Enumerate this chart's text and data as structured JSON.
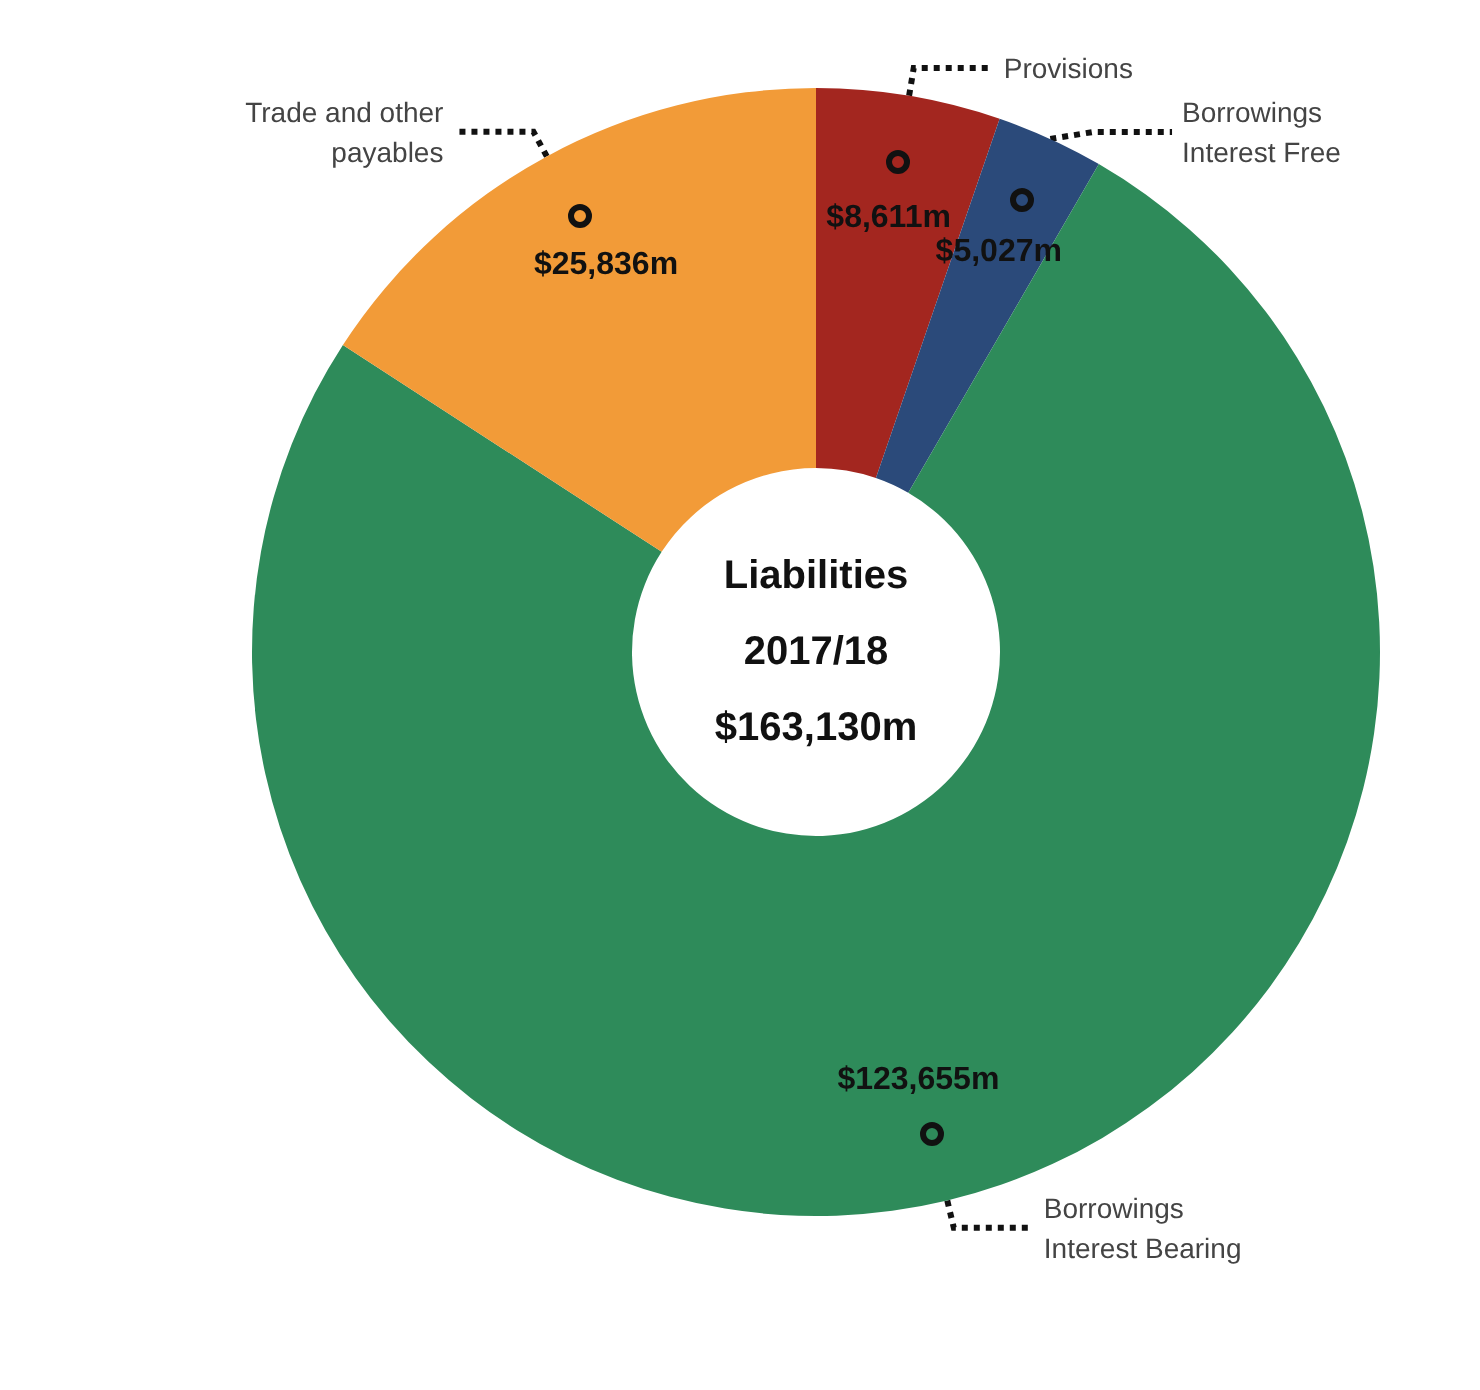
{
  "chart_data": {
    "type": "donut",
    "title": "Liabilities",
    "subtitle": "2017/18",
    "annotations": [
      "$163,130m"
    ],
    "categories": [
      "Provisions",
      "Borrowings\nInterest Free",
      "Borrowings\nInterest Bearing",
      "Trade and other\npayables"
    ],
    "values": [
      8611,
      5027,
      123655,
      25836
    ],
    "value_labels": [
      "$8,611m",
      "$5,027m",
      "$123,655m",
      "$25,836m"
    ],
    "colors": [
      "#a3261f",
      "#2b4a7a",
      "#2e8b5a",
      "#f29b38"
    ],
    "legend": false
  }
}
